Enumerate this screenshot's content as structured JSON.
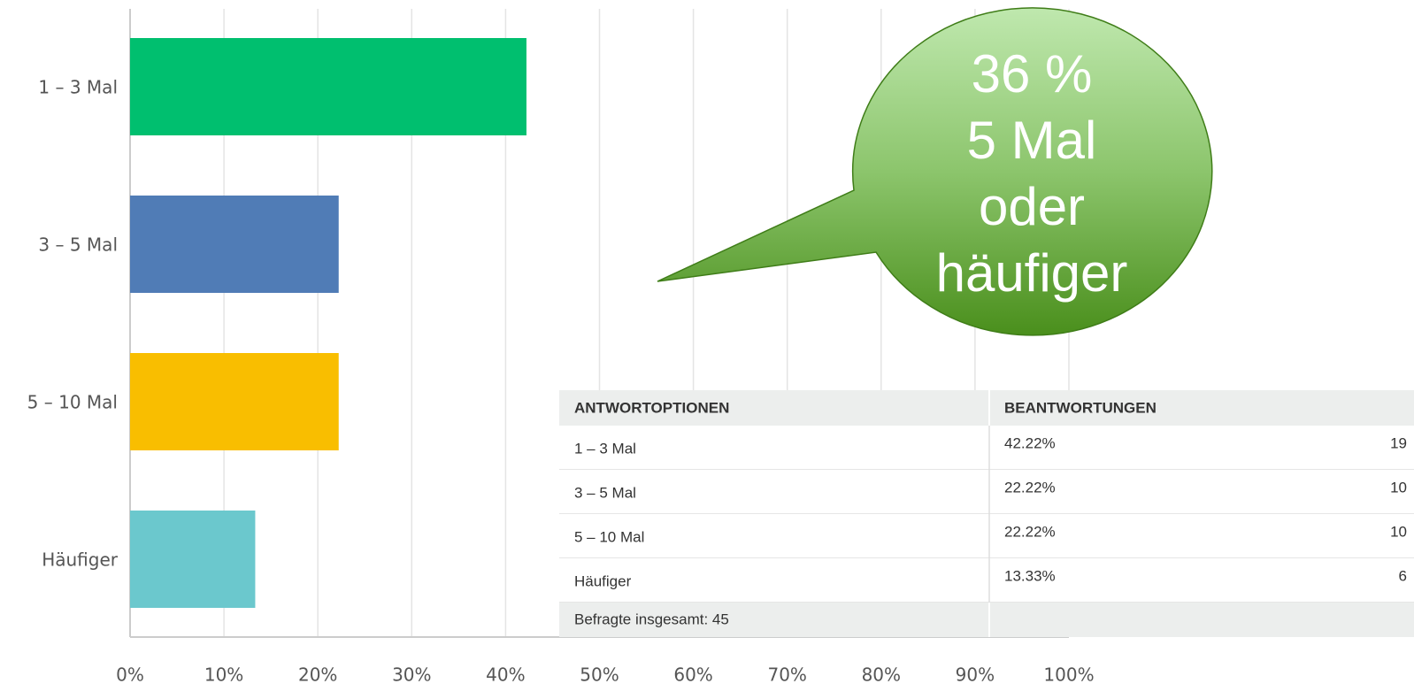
{
  "chart_data": {
    "type": "bar",
    "orientation": "horizontal",
    "categories": [
      "1 – 3 Mal",
      "3 – 5 Mal",
      "5 – 10 Mal",
      "Häufiger"
    ],
    "values": [
      42.22,
      22.22,
      22.22,
      13.33
    ],
    "colors": [
      "#00bf6f",
      "#507cb6",
      "#f9be00",
      "#6bc8cd"
    ],
    "xlim": [
      0,
      100
    ],
    "xticks": [
      {
        "value": 0,
        "label": "0%"
      },
      {
        "value": 10,
        "label": "10%"
      },
      {
        "value": 20,
        "label": "20%"
      },
      {
        "value": 30,
        "label": "30%"
      },
      {
        "value": 40,
        "label": "40%"
      },
      {
        "value": 50,
        "label": "50%"
      },
      {
        "value": 60,
        "label": "60%"
      },
      {
        "value": 70,
        "label": "70%"
      },
      {
        "value": 80,
        "label": "80%"
      },
      {
        "value": 90,
        "label": "90%"
      },
      {
        "value": 100,
        "label": "100%"
      }
    ],
    "grid": true
  },
  "callout": {
    "lines": [
      "36 %",
      "5 Mal",
      "oder",
      "häufiger"
    ]
  },
  "table": {
    "headers": [
      "ANTWORTOPTIONEN",
      "BEANTWORTUNGEN"
    ],
    "rows": [
      [
        "1 – 3 Mal",
        "42.22%",
        19
      ],
      [
        "3 – 5 Mal",
        "22.22%",
        10
      ],
      [
        "5 – 10 Mal",
        "22.22%",
        10
      ],
      [
        "Häufiger",
        "13.33%",
        6
      ]
    ],
    "footer": "Befragte insgesamt: 45"
  }
}
